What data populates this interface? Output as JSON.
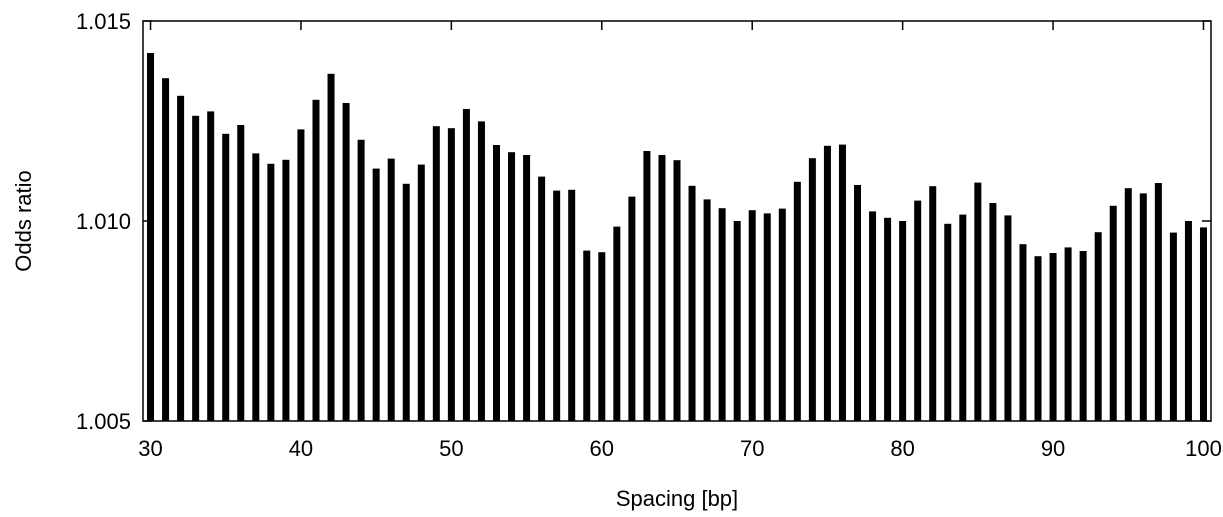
{
  "chart_data": {
    "type": "bar",
    "title": "",
    "xlabel": "Spacing [bp]",
    "ylabel": "Odds ratio",
    "x": [
      30,
      31,
      32,
      33,
      34,
      35,
      36,
      37,
      38,
      39,
      40,
      41,
      42,
      43,
      44,
      45,
      46,
      47,
      48,
      49,
      50,
      51,
      52,
      53,
      54,
      55,
      56,
      57,
      58,
      59,
      60,
      61,
      62,
      63,
      64,
      65,
      66,
      67,
      68,
      69,
      70,
      71,
      72,
      73,
      74,
      75,
      76,
      77,
      78,
      79,
      80,
      81,
      82,
      83,
      84,
      85,
      86,
      87,
      88,
      89,
      90,
      91,
      92,
      93,
      94,
      95,
      96,
      97,
      98,
      99,
      100
    ],
    "values": [
      1.0142,
      1.01357,
      1.01313,
      1.01263,
      1.01274,
      1.01218,
      1.0124,
      1.01169,
      1.01143,
      1.01153,
      1.01229,
      1.01303,
      1.01368,
      1.01295,
      1.01203,
      1.01131,
      1.01156,
      1.01093,
      1.01141,
      1.01237,
      1.01232,
      1.0128,
      1.01249,
      1.0119,
      1.01172,
      1.01165,
      1.01111,
      1.01076,
      1.01078,
      1.00926,
      1.00922,
      1.00986,
      1.01061,
      1.01175,
      1.01165,
      1.01152,
      1.01088,
      1.01054,
      1.01032,
      1.01,
      1.01027,
      1.01019,
      1.01031,
      1.01098,
      1.01157,
      1.01188,
      1.01191,
      1.0109,
      1.01024,
      1.01008,
      1.01,
      1.01051,
      1.01087,
      1.00993,
      1.01016,
      1.01096,
      1.01045,
      1.01014,
      1.00942,
      1.00912,
      1.0092,
      1.00934,
      1.00925,
      1.00972,
      1.01038,
      1.01082,
      1.01069,
      1.01095,
      1.00971,
      1.01,
      1.00984
    ],
    "xlim": [
      29.5,
      100.5
    ],
    "ylim": [
      1.005,
      1.015
    ],
    "xticks": [
      30,
      40,
      50,
      60,
      70,
      80,
      90,
      100
    ],
    "xtick_labels": [
      "30",
      "40",
      "50",
      "60",
      "70",
      "80",
      "90",
      "100"
    ],
    "yticks": [
      1.005,
      1.01,
      1.015
    ],
    "ytick_labels": [
      "1.005",
      "1.010",
      "1.015"
    ],
    "grid": false,
    "legend": "none",
    "bar_color": "#000000"
  }
}
